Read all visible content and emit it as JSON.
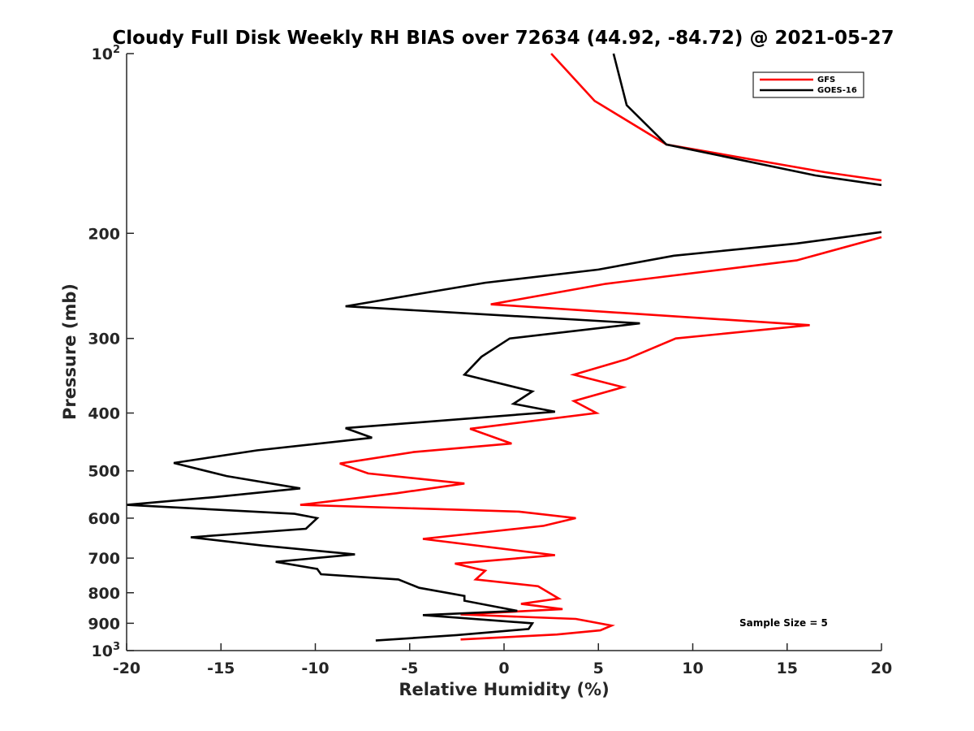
{
  "chart_data": {
    "type": "line",
    "title": "Cloudy Full Disk Weekly RH BIAS over 72634 (44.92, -84.72) @ 2021-05-27",
    "xlabel": "Relative Humidity (%)",
    "ylabel": "Pressure (mb)",
    "xlim": [
      -20,
      20
    ],
    "ylim": [
      100,
      1000
    ],
    "yscale": "log",
    "y_reversed": true,
    "grid": false,
    "legend_position": "top-right",
    "x_ticks": [
      "-20",
      "-15",
      "-10",
      "-5",
      "0",
      "5",
      "10",
      "15",
      "20"
    ],
    "y_ticks": [
      {
        "value": 100,
        "base": "10",
        "exp": "2"
      },
      {
        "value": 200,
        "label": "200"
      },
      {
        "value": 300,
        "label": "300"
      },
      {
        "value": 400,
        "label": "400"
      },
      {
        "value": 500,
        "label": "500"
      },
      {
        "value": 600,
        "label": "600"
      },
      {
        "value": 700,
        "label": "700"
      },
      {
        "value": 800,
        "label": "800"
      },
      {
        "value": 900,
        "label": "900"
      },
      {
        "value": 1000,
        "base": "10",
        "exp": "3"
      }
    ],
    "annotation": "Sample Size = 5",
    "series": [
      {
        "name": "GFS",
        "color": "#ff0000",
        "segments": [
          [
            {
              "x": 2.5,
              "p": 100
            },
            {
              "x": 4.8,
              "p": 120
            },
            {
              "x": 8.6,
              "p": 142
            },
            {
              "x": 17.0,
              "p": 158
            },
            {
              "x": 20.0,
              "p": 163
            }
          ],
          [
            {
              "x": 20.0,
              "p": 203
            },
            {
              "x": 15.5,
              "p": 222
            },
            {
              "x": 5.4,
              "p": 243
            },
            {
              "x": -0.7,
              "p": 263
            },
            {
              "x": 16.2,
              "p": 285
            },
            {
              "x": 9.1,
              "p": 300
            },
            {
              "x": 6.5,
              "p": 325
            },
            {
              "x": 3.7,
              "p": 345
            },
            {
              "x": 6.3,
              "p": 362
            },
            {
              "x": 3.7,
              "p": 382
            },
            {
              "x": 4.9,
              "p": 400
            },
            {
              "x": -1.8,
              "p": 425
            },
            {
              "x": 0.4,
              "p": 450
            },
            {
              "x": -4.8,
              "p": 465
            },
            {
              "x": -8.7,
              "p": 486
            },
            {
              "x": -7.2,
              "p": 505
            },
            {
              "x": -2.1,
              "p": 525
            },
            {
              "x": -5.7,
              "p": 545
            },
            {
              "x": -10.8,
              "p": 570
            },
            {
              "x": 0.8,
              "p": 585
            },
            {
              "x": 3.8,
              "p": 600
            },
            {
              "x": 2.1,
              "p": 618
            },
            {
              "x": -4.3,
              "p": 650
            },
            {
              "x": 2.7,
              "p": 692
            },
            {
              "x": -2.6,
              "p": 715
            },
            {
              "x": -1.0,
              "p": 735
            },
            {
              "x": -1.5,
              "p": 760
            },
            {
              "x": 1.8,
              "p": 780
            },
            {
              "x": 2.9,
              "p": 818
            },
            {
              "x": 0.9,
              "p": 835
            },
            {
              "x": 3.1,
              "p": 852
            },
            {
              "x": -2.3,
              "p": 870
            },
            {
              "x": 3.8,
              "p": 885
            },
            {
              "x": 5.7,
              "p": 908
            },
            {
              "x": 5.1,
              "p": 925
            },
            {
              "x": 2.8,
              "p": 940
            },
            {
              "x": -2.3,
              "p": 958
            }
          ]
        ]
      },
      {
        "name": "GOES-16",
        "color": "#000000",
        "segments": [
          [
            {
              "x": 5.8,
              "p": 100
            },
            {
              "x": 6.5,
              "p": 122
            },
            {
              "x": 8.6,
              "p": 142
            },
            {
              "x": 16.5,
              "p": 160
            },
            {
              "x": 20.0,
              "p": 166
            }
          ],
          [
            {
              "x": 20.0,
              "p": 199
            },
            {
              "x": 15.5,
              "p": 208
            },
            {
              "x": 9.0,
              "p": 218
            },
            {
              "x": 5.0,
              "p": 230
            },
            {
              "x": -1.0,
              "p": 242
            },
            {
              "x": -8.4,
              "p": 265
            },
            {
              "x": 7.2,
              "p": 283
            },
            {
              "x": 0.3,
              "p": 300
            },
            {
              "x": -1.2,
              "p": 322
            },
            {
              "x": -2.1,
              "p": 345
            },
            {
              "x": 1.5,
              "p": 368
            },
            {
              "x": 0.5,
              "p": 386
            },
            {
              "x": 2.7,
              "p": 398
            },
            {
              "x": -8.4,
              "p": 424
            },
            {
              "x": -7.0,
              "p": 440
            },
            {
              "x": -13.1,
              "p": 462
            },
            {
              "x": -17.5,
              "p": 485
            },
            {
              "x": -14.7,
              "p": 510
            },
            {
              "x": -10.8,
              "p": 535
            },
            {
              "x": -15.3,
              "p": 553
            },
            {
              "x": -20.0,
              "p": 570
            },
            {
              "x": -11.1,
              "p": 590
            },
            {
              "x": -9.9,
              "p": 600
            },
            {
              "x": -10.5,
              "p": 625
            },
            {
              "x": -16.6,
              "p": 646
            },
            {
              "x": -12.8,
              "p": 667
            },
            {
              "x": -7.9,
              "p": 690
            },
            {
              "x": -12.1,
              "p": 710
            },
            {
              "x": -9.9,
              "p": 730
            },
            {
              "x": -9.7,
              "p": 745
            },
            {
              "x": -5.6,
              "p": 760
            },
            {
              "x": -4.5,
              "p": 785
            },
            {
              "x": -2.1,
              "p": 810
            },
            {
              "x": -2.1,
              "p": 825
            },
            {
              "x": 0.7,
              "p": 858
            },
            {
              "x": -4.3,
              "p": 872
            },
            {
              "x": 1.5,
              "p": 900
            },
            {
              "x": 1.3,
              "p": 920
            },
            {
              "x": -2.5,
              "p": 942
            },
            {
              "x": -6.8,
              "p": 962
            }
          ]
        ]
      }
    ]
  }
}
